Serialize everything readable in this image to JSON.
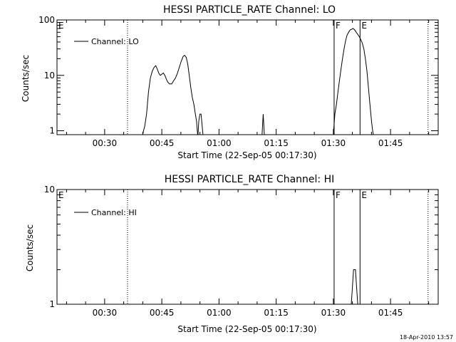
{
  "chart_data": [
    {
      "type": "line",
      "title": "HESSI PARTICLE_RATE Channel: LO",
      "xlabel": "Start Time (22-Sep-05 00:17:30)",
      "ylabel": "Counts/sec",
      "y_scale": "log",
      "ylim": [
        0.85,
        100
      ],
      "xlim_min": [
        17.5,
        76.5
      ],
      "x_ticks": [
        "00:30",
        "00:45",
        "01:00",
        "01:15",
        "01:30",
        "01:45"
      ],
      "y_ticks": [
        "1",
        "10",
        "100"
      ],
      "legend": {
        "position": "top-left",
        "entries": [
          "Channel: LO"
        ]
      },
      "markers": [
        {
          "label": "E",
          "time": "00:17:30",
          "style": "dotted"
        },
        {
          "label": "",
          "time": "00:36:00",
          "style": "dotted"
        },
        {
          "label": "F",
          "time": "01:30:12",
          "style": "solid"
        },
        {
          "label": "E",
          "time": "01:37:00",
          "style": "solid"
        },
        {
          "label": "",
          "time": "01:54:50",
          "style": "dotted"
        }
      ],
      "series": [
        {
          "name": "Channel: LO",
          "segments": [
            [
              [
                40,
                0.85
              ],
              [
                40.2,
                1
              ],
              [
                40.5,
                1.2
              ],
              [
                41,
                2
              ],
              [
                41.5,
                5
              ],
              [
                42,
                9
              ],
              [
                42.5,
                12
              ],
              [
                43,
                14
              ],
              [
                43.4,
                15
              ],
              [
                43.8,
                13
              ],
              [
                44.2,
                11
              ],
              [
                44.6,
                10
              ],
              [
                45,
                10.5
              ],
              [
                45.4,
                11
              ],
              [
                45.8,
                10
              ],
              [
                46.2,
                8.5
              ],
              [
                46.6,
                7.5
              ],
              [
                47,
                7
              ],
              [
                47.6,
                7
              ],
              [
                48.1,
                8
              ],
              [
                48.6,
                9
              ],
              [
                49.1,
                11
              ],
              [
                49.6,
                14
              ],
              [
                50.1,
                18
              ],
              [
                50.6,
                22
              ],
              [
                51,
                23
              ],
              [
                51.4,
                21
              ],
              [
                51.8,
                16
              ],
              [
                52.2,
                10
              ],
              [
                52.6,
                6
              ],
              [
                53,
                4
              ],
              [
                53.4,
                3
              ],
              [
                53.8,
                2
              ],
              [
                54.1,
                1.5
              ],
              [
                54.3,
                1
              ],
              [
                54.4,
                0.85
              ]
            ],
            [
              [
                54.5,
                0.85
              ],
              [
                54.7,
                1.5
              ],
              [
                55,
                2
              ],
              [
                55.3,
                2
              ],
              [
                55.6,
                1.2
              ],
              [
                55.8,
                0.85
              ]
            ],
            [
              [
                71.3,
                0.85
              ],
              [
                71.6,
                2
              ],
              [
                71.9,
                0.85
              ]
            ],
            [
              [
                90,
                0.85
              ],
              [
                90.2,
                1.3
              ],
              [
                90.4,
                2
              ],
              [
                90.8,
                3
              ],
              [
                91.2,
                5
              ],
              [
                91.6,
                8
              ],
              [
                92,
                13
              ],
              [
                92.4,
                20
              ],
              [
                92.8,
                30
              ],
              [
                93.2,
                42
              ],
              [
                93.6,
                53
              ],
              [
                94,
                60
              ],
              [
                94.4,
                66
              ],
              [
                94.8,
                68
              ],
              [
                95.2,
                70
              ],
              [
                95.6,
                66
              ],
              [
                96,
                60
              ],
              [
                96.4,
                55
              ],
              [
                96.8,
                50
              ],
              [
                97.2,
                44
              ],
              [
                97.6,
                38
              ],
              [
                98,
                30
              ],
              [
                98.4,
                20
              ],
              [
                98.8,
                12
              ],
              [
                99.2,
                6
              ],
              [
                99.6,
                3
              ],
              [
                100,
                1.5
              ],
              [
                100.3,
                1
              ],
              [
                100.5,
                0.85
              ]
            ]
          ]
        }
      ]
    },
    {
      "type": "line",
      "title": "HESSI PARTICLE_RATE Channel: HI",
      "xlabel": "Start Time (22-Sep-05 00:17:30)",
      "ylabel": "Counts/sec",
      "y_scale": "log",
      "ylim": [
        1,
        10
      ],
      "xlim_min": [
        17.5,
        76.5
      ],
      "x_ticks": [
        "00:30",
        "00:45",
        "01:00",
        "01:15",
        "01:30",
        "01:45"
      ],
      "y_ticks": [
        "1",
        "10"
      ],
      "legend": {
        "position": "top-left",
        "entries": [
          "Channel: HI"
        ]
      },
      "markers": [
        {
          "label": "E",
          "time": "00:17:30",
          "style": "dotted"
        },
        {
          "label": "",
          "time": "00:36:00",
          "style": "dotted"
        },
        {
          "label": "F",
          "time": "01:30:12",
          "style": "solid"
        },
        {
          "label": "E",
          "time": "01:37:00",
          "style": "solid"
        },
        {
          "label": "",
          "time": "01:54:50",
          "style": "dotted"
        }
      ],
      "series": [
        {
          "name": "Channel: HI",
          "segments": [
            [
              [
                94.7,
                1
              ],
              [
                95,
                1.4
              ],
              [
                95.3,
                2
              ],
              [
                95.8,
                2
              ],
              [
                96.1,
                1.4
              ],
              [
                96.4,
                1
              ]
            ]
          ]
        }
      ]
    }
  ],
  "timestamp": "18-Apr-2010 13:57"
}
